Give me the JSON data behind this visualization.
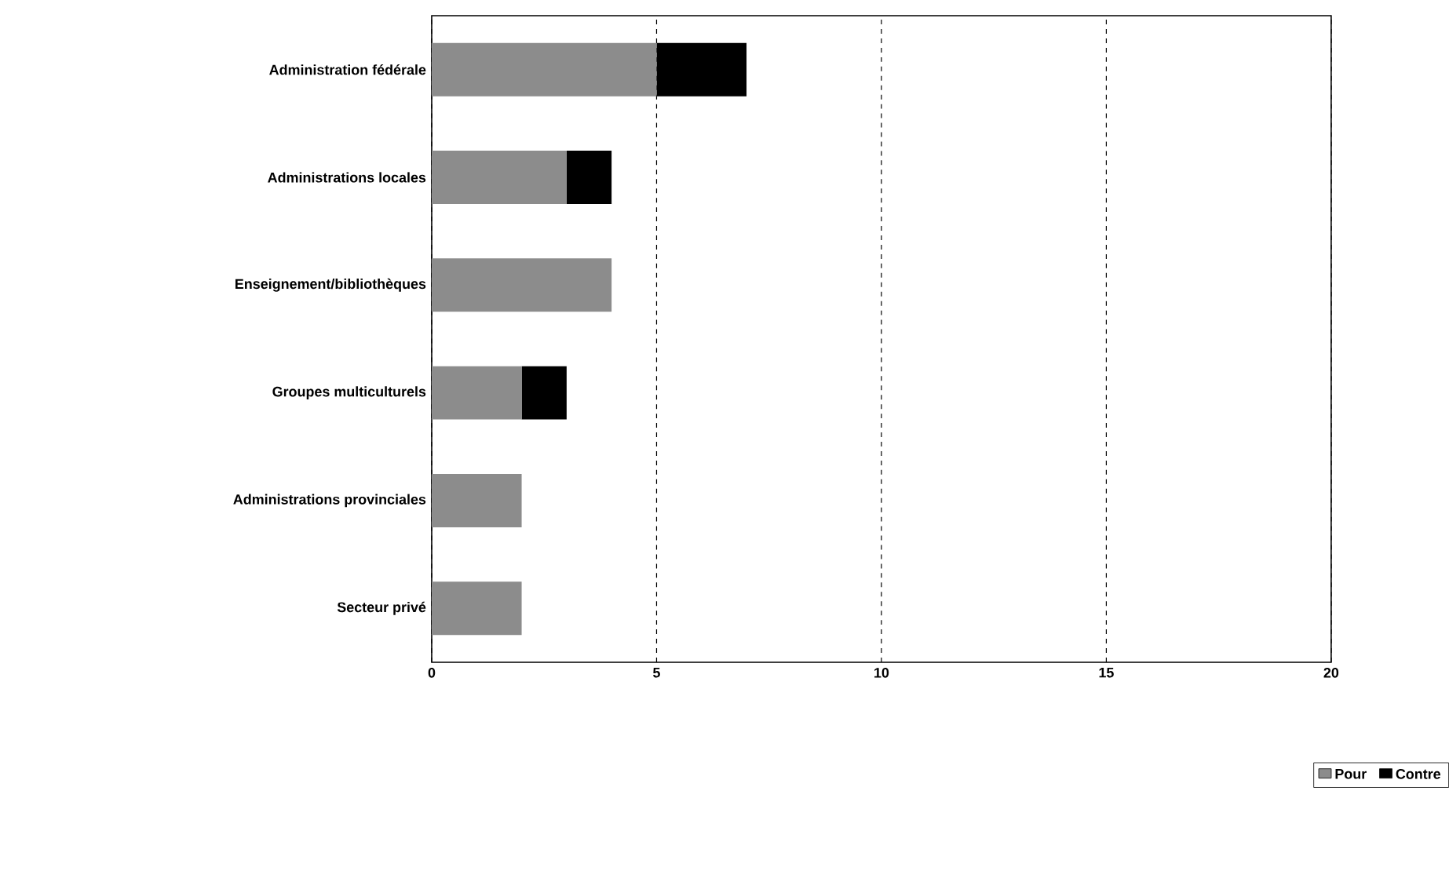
{
  "chart_data": {
    "type": "bar",
    "orientation": "horizontal",
    "stacked": true,
    "categories": [
      "Administration fédérale",
      "Administrations locales",
      "Enseignement/bibliothèques",
      "Groupes multiculturels",
      "Administrations provinciales",
      "Secteur privé"
    ],
    "series": [
      {
        "name": "Pour",
        "color": "#8c8c8c",
        "values": [
          5,
          3,
          4,
          2,
          2,
          2
        ]
      },
      {
        "name": "Contre",
        "color": "#000000",
        "values": [
          2,
          1,
          0,
          1,
          0,
          0
        ]
      }
    ],
    "xlim": [
      0,
      20
    ],
    "xticks": [
      0,
      5,
      10,
      15,
      20
    ],
    "grid": "x",
    "legend": "bottom right"
  }
}
